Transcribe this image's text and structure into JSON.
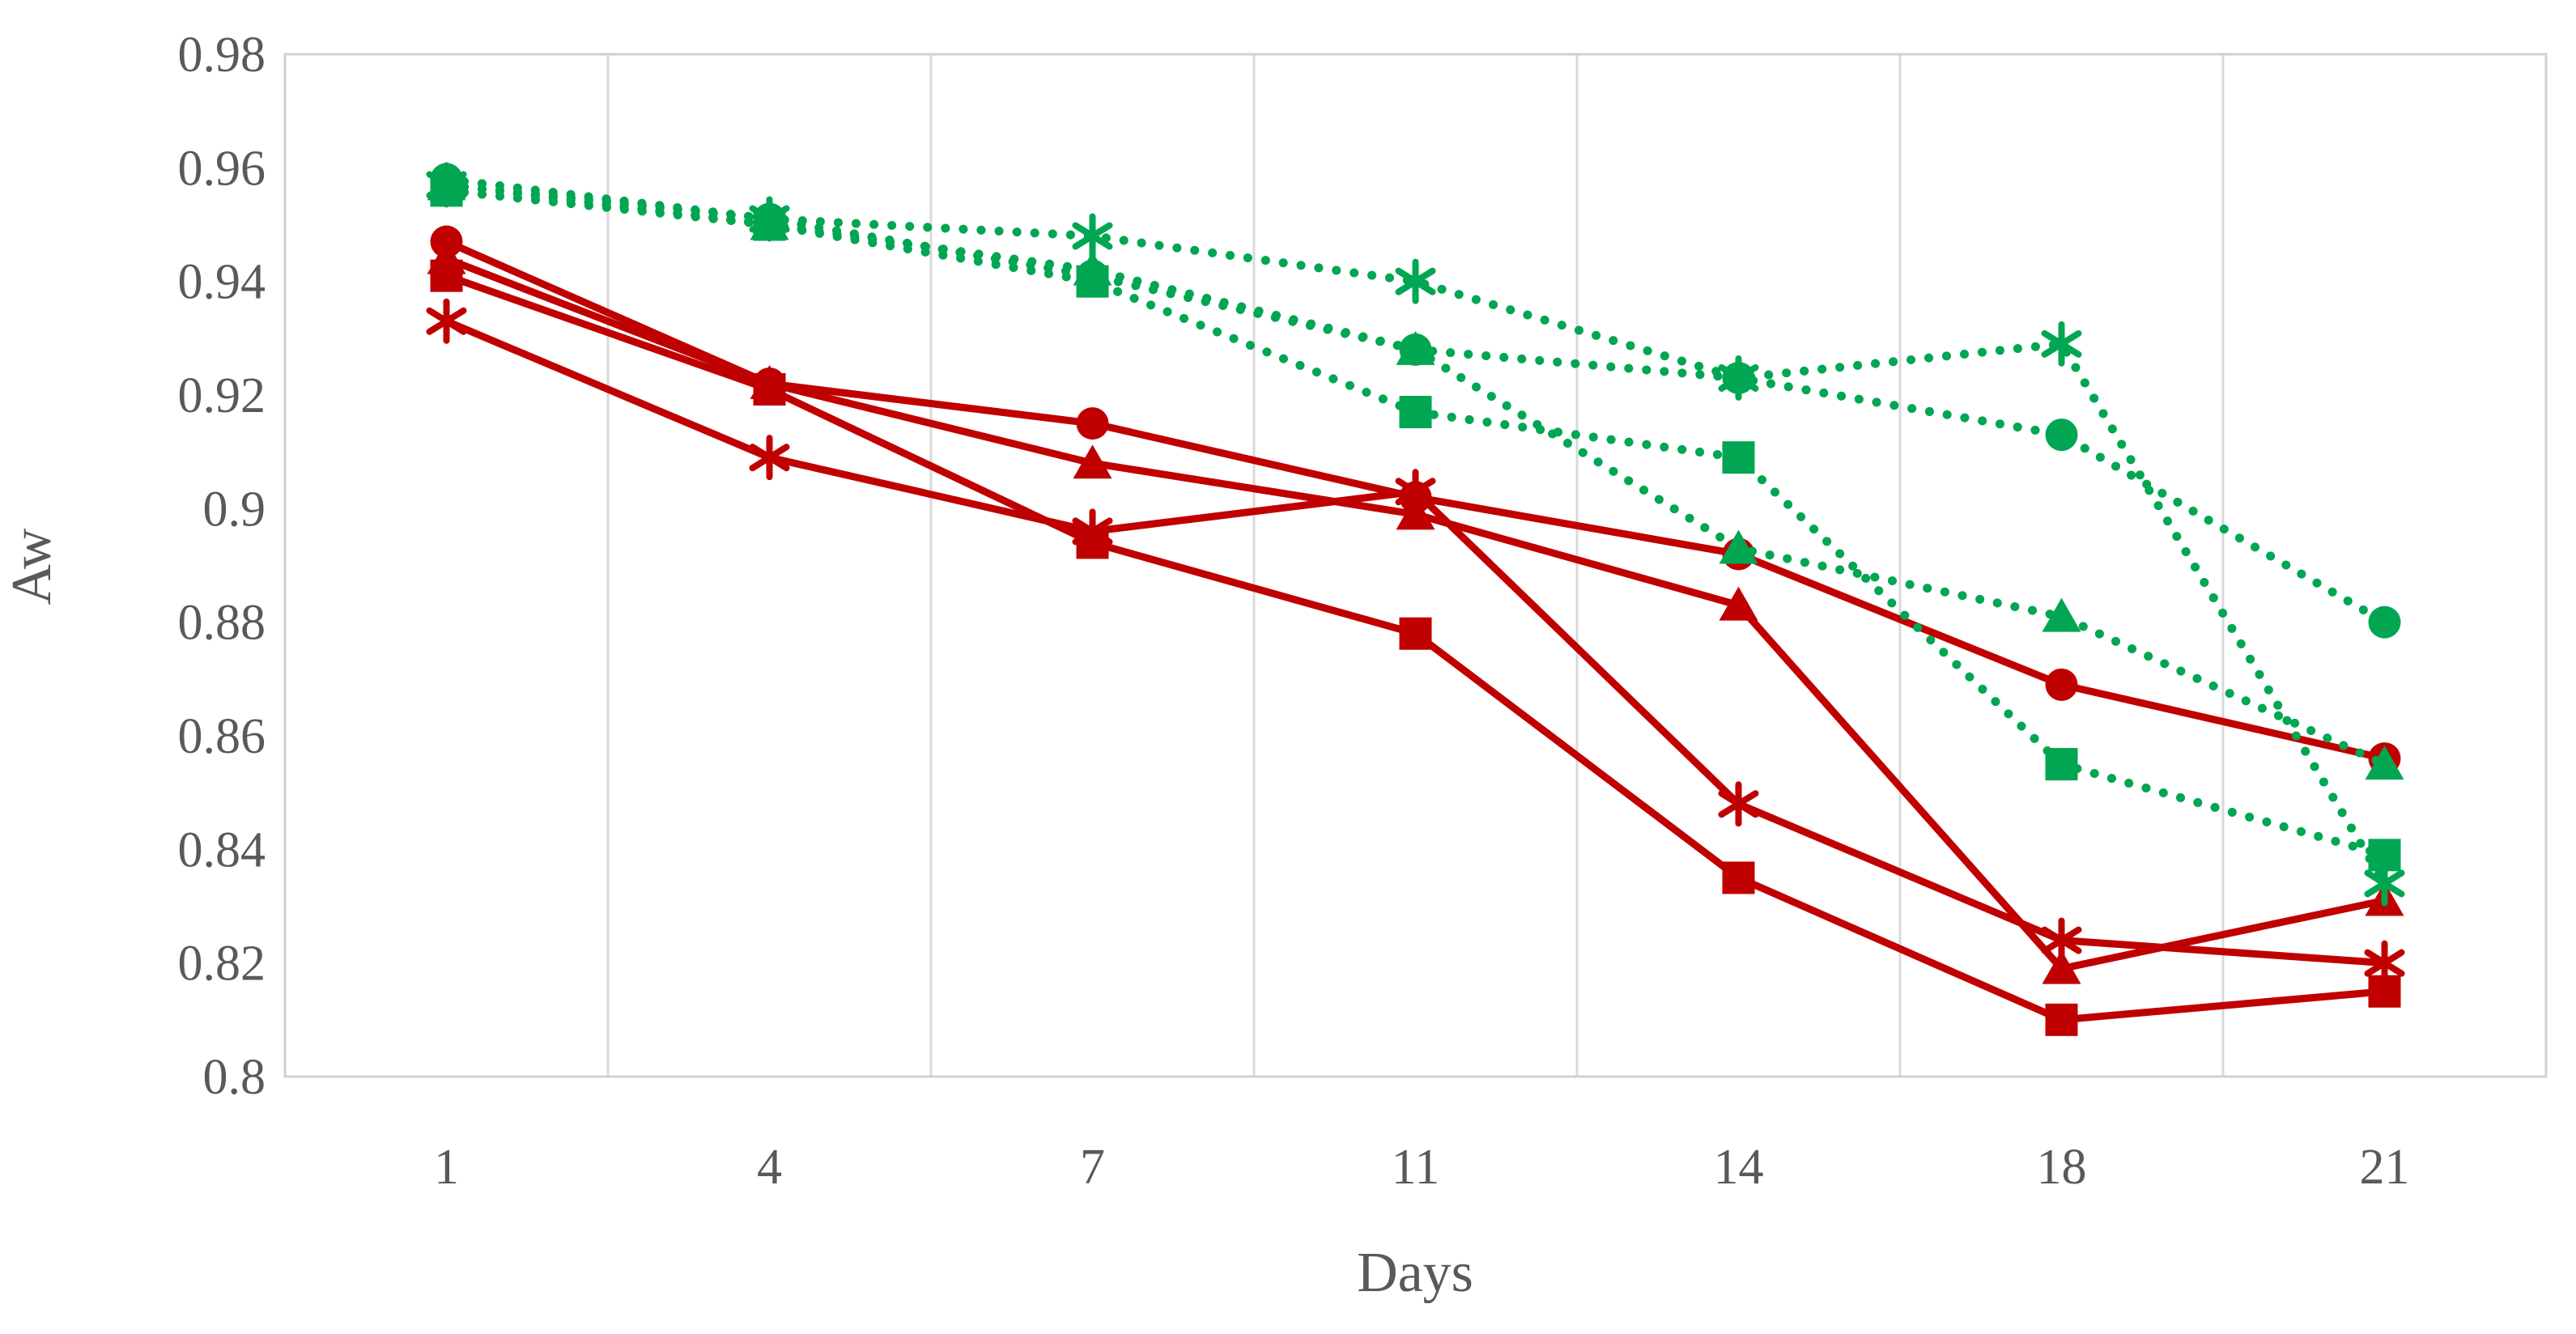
{
  "figure": {
    "title": "",
    "colors": {
      "red_series": "#C00000",
      "green_series": "#00A651",
      "gridline": "#D9D9D9",
      "plot_border": "#D0D0D0",
      "axis_text": "#595959"
    }
  },
  "chart_data": {
    "type": "line",
    "title": "",
    "xlabel": "Days",
    "ylabel": "Aw",
    "categories": [
      1,
      4,
      7,
      11,
      14,
      18,
      21
    ],
    "ylim": [
      0.8,
      0.98
    ],
    "ytick_step": 0.02,
    "grid": "vertical-only",
    "legend": "none",
    "series": [
      {
        "name": "red-square",
        "color": "#C00000",
        "style": "solid",
        "marker": "square",
        "values": [
          0.941,
          0.921,
          0.894,
          0.878,
          0.835,
          0.81,
          0.815
        ]
      },
      {
        "name": "red-triangle",
        "color": "#C00000",
        "style": "solid",
        "marker": "triangle",
        "values": [
          0.944,
          0.922,
          0.908,
          0.899,
          0.883,
          0.819,
          0.831
        ]
      },
      {
        "name": "red-circle",
        "color": "#C00000",
        "style": "solid",
        "marker": "circle",
        "values": [
          0.947,
          0.922,
          0.915,
          0.902,
          0.892,
          0.869,
          0.856
        ]
      },
      {
        "name": "red-asterisk",
        "color": "#C00000",
        "style": "solid",
        "marker": "asterisk",
        "values": [
          0.933,
          0.909,
          0.896,
          0.903,
          0.848,
          0.824,
          0.82
        ]
      },
      {
        "name": "green-square",
        "color": "#00A651",
        "style": "dotted",
        "marker": "square",
        "values": [
          0.956,
          0.95,
          0.94,
          0.917,
          0.909,
          0.855,
          0.839
        ]
      },
      {
        "name": "green-triangle",
        "color": "#00A651",
        "style": "dotted",
        "marker": "triangle",
        "values": [
          0.957,
          0.95,
          0.942,
          0.928,
          0.893,
          0.881,
          0.855
        ]
      },
      {
        "name": "green-circle",
        "color": "#00A651",
        "style": "dotted",
        "marker": "circle",
        "values": [
          0.958,
          0.951,
          0.941,
          0.928,
          0.923,
          0.913,
          0.88
        ]
      },
      {
        "name": "green-asterisk",
        "color": "#00A651",
        "style": "dotted",
        "marker": "asterisk",
        "values": [
          0.957,
          0.951,
          0.948,
          0.94,
          0.923,
          0.929,
          0.834
        ]
      }
    ]
  }
}
